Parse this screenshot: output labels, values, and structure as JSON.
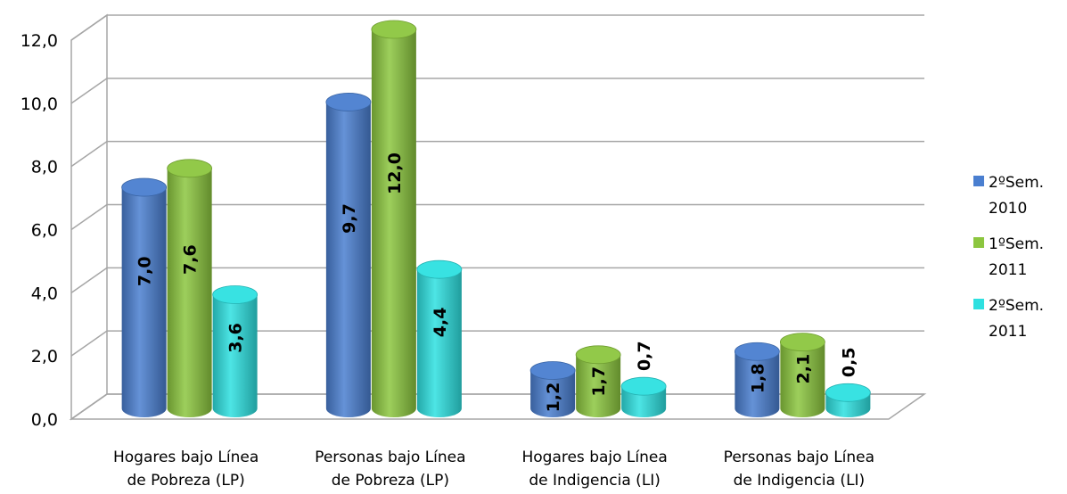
{
  "chart_data": {
    "type": "bar",
    "title": "",
    "xlabel": "",
    "ylabel": "",
    "ylim": [
      0,
      12
    ],
    "y_ticks": [
      "0,0",
      "2,0",
      "4,0",
      "6,0",
      "8,0",
      "10,0",
      "12,0"
    ],
    "grid": true,
    "legend_position": "right",
    "categories": [
      [
        "Hogares bajo Línea",
        "de Pobreza (LP)"
      ],
      [
        "Personas bajo Línea",
        "de Pobreza (LP)"
      ],
      [
        "Hogares bajo Línea",
        "de Indigencia (LI)"
      ],
      [
        "Personas bajo Línea",
        "de Indigencia (LI)"
      ]
    ],
    "series": [
      {
        "name": [
          "2ºSem.",
          "2010"
        ],
        "color": "#4a7fd0",
        "values": [
          7.0,
          9.7,
          1.2,
          1.8
        ],
        "labels": [
          "7,0",
          "9,7",
          "1,2",
          "1,8"
        ]
      },
      {
        "name": [
          "1ºSem.",
          "2011"
        ],
        "color": "#8cc63f",
        "values": [
          7.6,
          12.0,
          1.7,
          2.1
        ],
        "labels": [
          "7,6",
          "12,0",
          "1,7",
          "2,1"
        ]
      },
      {
        "name": [
          "2ºSem.",
          "2011"
        ],
        "color": "#2ee0e0",
        "values": [
          3.6,
          4.4,
          0.7,
          0.5
        ],
        "labels": [
          "3,6",
          "4,4",
          "0,7",
          "0,5"
        ]
      }
    ]
  }
}
